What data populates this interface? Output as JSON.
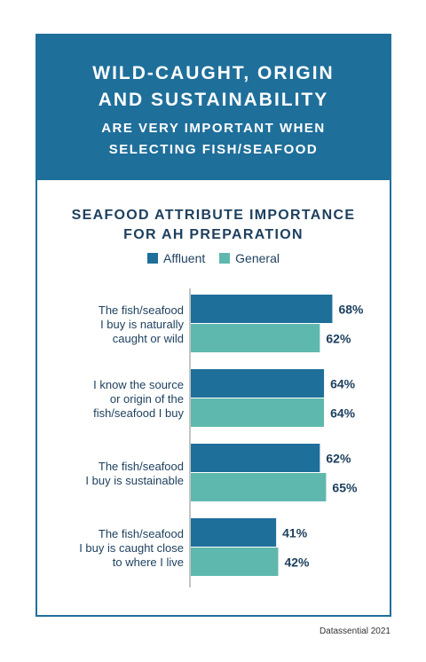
{
  "header": {
    "line1": "WILD-CAUGHT, ORIGIN",
    "line2": "AND SUSTAINABILITY",
    "line3": "ARE VERY IMPORTANT WHEN",
    "line4": "SELECTING FISH/SEAFOOD"
  },
  "source": "Datassential 2021",
  "colors": {
    "header_bg": "#1f6f9b",
    "affluent": "#1f6f9b",
    "general": "#5fb8ad",
    "text": "#1d3f5e"
  },
  "chart_data": {
    "type": "bar",
    "orientation": "horizontal",
    "title_lines": [
      "SEAFOOD ATTRIBUTE IMPORTANCE",
      "FOR AH PREPARATION"
    ],
    "categories": [
      [
        "The fish/seafood",
        "I buy is naturally",
        "caught or wild"
      ],
      [
        "I know the source",
        "or origin of the",
        "fish/seafood I buy"
      ],
      [
        "The fish/seafood",
        "I buy is sustainable"
      ],
      [
        "The fish/seafood",
        "I buy is caught close",
        "to where I live"
      ]
    ],
    "series": [
      {
        "name": "Affluent",
        "values": [
          68,
          64,
          62,
          41
        ],
        "labels": [
          "68%",
          "64%",
          "62%",
          "41%"
        ]
      },
      {
        "name": "General",
        "values": [
          62,
          64,
          65,
          42
        ],
        "labels": [
          "62%",
          "64%",
          "65%",
          "42%"
        ]
      }
    ],
    "legend": "top-center",
    "grid": false
  }
}
